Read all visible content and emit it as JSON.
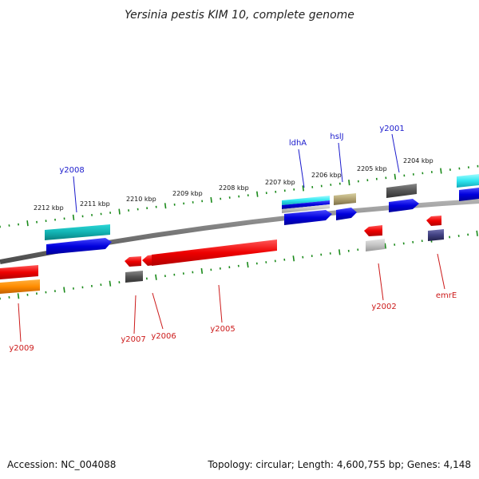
{
  "title": "Yersinia pestis KIM 10, complete genome",
  "footer": {
    "accession": "Accession: NC_004088",
    "summary": "Topology: circular; Length: 4,600,755 bp; Genes: 4,148"
  },
  "colors": {
    "backbone": "#808080",
    "tick": "#1a8a1a",
    "forward_label": "#1a1acc",
    "reverse_label": "#cc1a1a"
  },
  "kbp_labels": [
    "2212 kbp",
    "2211 kbp",
    "2210 kbp",
    "2209 kbp",
    "2208 kbp",
    "2207 kbp",
    "2206 kbp",
    "2205 kbp",
    "2204 kbp"
  ],
  "forward_genes": [
    {
      "label": "y2008",
      "color": "#1a1acc"
    },
    {
      "label": "ldhA",
      "color": "#1a1acc"
    },
    {
      "label": "hslJ",
      "color": "#1a1acc"
    },
    {
      "label": "y2001",
      "color": "#1a1acc"
    }
  ],
  "reverse_genes": [
    {
      "label": "y2009",
      "color": "#cc1a1a"
    },
    {
      "label": "y2007",
      "color": "#cc1a1a"
    },
    {
      "label": "y2006",
      "color": "#cc1a1a"
    },
    {
      "label": "y2005",
      "color": "#cc1a1a"
    },
    {
      "label": "y2002",
      "color": "#cc1a1a"
    },
    {
      "label": "emrE",
      "color": "#cc1a1a"
    }
  ]
}
